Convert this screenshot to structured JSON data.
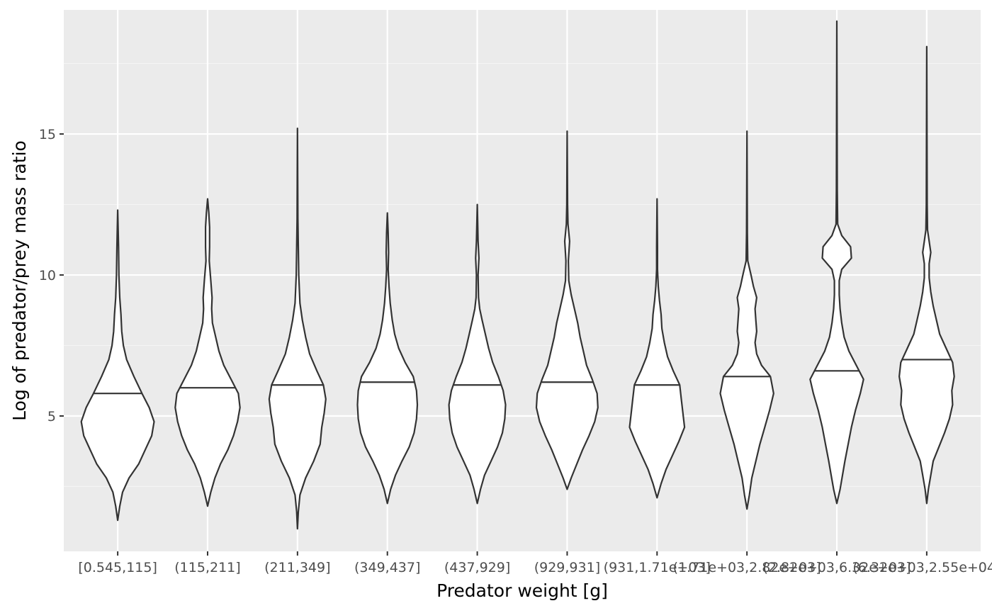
{
  "chart_data": {
    "type": "violin",
    "xlabel": "Predator weight [g]",
    "ylabel": "Log of predator/prey mass ratio",
    "ylim": [
      0.2,
      19.4
    ],
    "yticks": [
      5,
      10,
      15
    ],
    "yticklabels": [
      "5",
      "10",
      "15"
    ],
    "grid": true,
    "colors": {
      "panel_background": "#ebebeb",
      "grid_major": "#ffffff",
      "grid_minor": "#f5f5f5",
      "violin_fill": "#ffffff",
      "violin_outline": "#333333",
      "tick_text": "#4d4d4d",
      "title_text": "#000000"
    },
    "categories": [
      "[0.545,115]",
      "(115,211]",
      "(211,349]",
      "(349,437]",
      "(437,929]",
      "(929,931]",
      "(931,1.71e+03]",
      "(1.71e+03,2.82e+03]",
      "(2.82e+03,6.32e+03]",
      "(6.32e+03,2.55e+04]"
    ],
    "violins": [
      {
        "category": "[0.545,115]",
        "min": 1.3,
        "max": 12.3,
        "median": 5.8,
        "profile": [
          [
            1.3,
            0.0
          ],
          [
            1.8,
            0.05
          ],
          [
            2.3,
            0.12
          ],
          [
            2.8,
            0.28
          ],
          [
            3.3,
            0.52
          ],
          [
            3.8,
            0.68
          ],
          [
            4.3,
            0.84
          ],
          [
            4.8,
            0.9
          ],
          [
            5.3,
            0.78
          ],
          [
            5.8,
            0.6
          ],
          [
            6.4,
            0.4
          ],
          [
            7.0,
            0.22
          ],
          [
            7.5,
            0.14
          ],
          [
            8.0,
            0.1
          ],
          [
            8.6,
            0.08
          ],
          [
            9.2,
            0.05
          ],
          [
            10.0,
            0.03
          ],
          [
            11.0,
            0.02
          ],
          [
            12.3,
            0.0
          ]
        ]
      },
      {
        "category": "(115,211]",
        "min": 1.8,
        "max": 12.7,
        "median": 6.0,
        "profile": [
          [
            1.8,
            0.0
          ],
          [
            2.3,
            0.08
          ],
          [
            2.8,
            0.18
          ],
          [
            3.3,
            0.32
          ],
          [
            3.8,
            0.5
          ],
          [
            4.3,
            0.64
          ],
          [
            4.8,
            0.74
          ],
          [
            5.3,
            0.8
          ],
          [
            5.8,
            0.76
          ],
          [
            6.3,
            0.58
          ],
          [
            6.8,
            0.4
          ],
          [
            7.3,
            0.28
          ],
          [
            7.8,
            0.2
          ],
          [
            8.3,
            0.12
          ],
          [
            8.8,
            0.1
          ],
          [
            9.2,
            0.11
          ],
          [
            9.8,
            0.08
          ],
          [
            10.5,
            0.04
          ],
          [
            11.0,
            0.05
          ],
          [
            11.7,
            0.05
          ],
          [
            12.2,
            0.03
          ],
          [
            12.7,
            0.0
          ]
        ]
      },
      {
        "category": "(211,349]",
        "min": 1.0,
        "max": 15.2,
        "median": 6.1,
        "profile": [
          [
            1.0,
            0.0
          ],
          [
            1.6,
            0.02
          ],
          [
            2.2,
            0.06
          ],
          [
            2.8,
            0.2
          ],
          [
            3.4,
            0.4
          ],
          [
            4.0,
            0.56
          ],
          [
            4.6,
            0.6
          ],
          [
            5.1,
            0.66
          ],
          [
            5.6,
            0.7
          ],
          [
            6.1,
            0.64
          ],
          [
            6.6,
            0.48
          ],
          [
            7.2,
            0.3
          ],
          [
            7.8,
            0.2
          ],
          [
            8.4,
            0.12
          ],
          [
            9.0,
            0.06
          ],
          [
            10.0,
            0.03
          ],
          [
            11.0,
            0.02
          ],
          [
            12.0,
            0.01
          ],
          [
            15.2,
            0.0
          ]
        ]
      },
      {
        "category": "(349,437]",
        "min": 1.9,
        "max": 12.2,
        "median": 6.2,
        "profile": [
          [
            1.9,
            0.0
          ],
          [
            2.4,
            0.08
          ],
          [
            2.9,
            0.2
          ],
          [
            3.4,
            0.36
          ],
          [
            3.9,
            0.54
          ],
          [
            4.4,
            0.66
          ],
          [
            4.9,
            0.72
          ],
          [
            5.4,
            0.74
          ],
          [
            5.9,
            0.72
          ],
          [
            6.4,
            0.64
          ],
          [
            6.9,
            0.44
          ],
          [
            7.4,
            0.28
          ],
          [
            7.9,
            0.18
          ],
          [
            8.4,
            0.12
          ],
          [
            9.0,
            0.07
          ],
          [
            9.6,
            0.04
          ],
          [
            10.2,
            0.02
          ],
          [
            10.8,
            0.03
          ],
          [
            11.5,
            0.02
          ],
          [
            12.2,
            0.0
          ]
        ]
      },
      {
        "category": "(437,929]",
        "min": 1.9,
        "max": 12.5,
        "median": 6.1,
        "profile": [
          [
            1.9,
            0.0
          ],
          [
            2.4,
            0.08
          ],
          [
            2.9,
            0.18
          ],
          [
            3.4,
            0.34
          ],
          [
            3.9,
            0.5
          ],
          [
            4.4,
            0.62
          ],
          [
            4.9,
            0.68
          ],
          [
            5.4,
            0.7
          ],
          [
            5.9,
            0.64
          ],
          [
            6.4,
            0.52
          ],
          [
            6.9,
            0.38
          ],
          [
            7.4,
            0.28
          ],
          [
            7.9,
            0.2
          ],
          [
            8.4,
            0.12
          ],
          [
            8.8,
            0.06
          ],
          [
            9.2,
            0.03
          ],
          [
            10.0,
            0.02
          ],
          [
            10.6,
            0.04
          ],
          [
            11.2,
            0.02
          ],
          [
            12.5,
            0.0
          ]
        ]
      },
      {
        "category": "(929,931]",
        "min": 2.4,
        "max": 15.1,
        "median": 6.2,
        "profile": [
          [
            2.4,
            0.0
          ],
          [
            2.8,
            0.1
          ],
          [
            3.3,
            0.24
          ],
          [
            3.8,
            0.38
          ],
          [
            4.3,
            0.54
          ],
          [
            4.8,
            0.68
          ],
          [
            5.3,
            0.76
          ],
          [
            5.8,
            0.74
          ],
          [
            6.3,
            0.62
          ],
          [
            6.8,
            0.48
          ],
          [
            7.3,
            0.4
          ],
          [
            7.8,
            0.32
          ],
          [
            8.3,
            0.26
          ],
          [
            8.8,
            0.18
          ],
          [
            9.3,
            0.1
          ],
          [
            9.8,
            0.04
          ],
          [
            10.5,
            0.03
          ],
          [
            11.2,
            0.06
          ],
          [
            11.8,
            0.02
          ],
          [
            12.5,
            0.01
          ],
          [
            15.1,
            0.0
          ]
        ]
      },
      {
        "category": "(931,1.71e+03]",
        "min": 2.1,
        "max": 12.7,
        "median": 6.1,
        "profile": [
          [
            2.1,
            0.0
          ],
          [
            2.6,
            0.1
          ],
          [
            3.1,
            0.22
          ],
          [
            3.6,
            0.38
          ],
          [
            4.1,
            0.54
          ],
          [
            4.6,
            0.68
          ],
          [
            5.1,
            0.64
          ],
          [
            5.6,
            0.6
          ],
          [
            6.1,
            0.56
          ],
          [
            6.6,
            0.4
          ],
          [
            7.1,
            0.26
          ],
          [
            7.6,
            0.18
          ],
          [
            8.1,
            0.12
          ],
          [
            8.6,
            0.1
          ],
          [
            9.1,
            0.06
          ],
          [
            9.6,
            0.03
          ],
          [
            10.2,
            0.01
          ],
          [
            11.0,
            0.01
          ],
          [
            12.7,
            0.0
          ]
        ]
      },
      {
        "category": "(1.71e+03,2.82e+03]",
        "min": 1.7,
        "max": 15.1,
        "median": 6.4,
        "profile": [
          [
            1.7,
            0.0
          ],
          [
            2.2,
            0.06
          ],
          [
            2.8,
            0.12
          ],
          [
            3.4,
            0.22
          ],
          [
            4.0,
            0.32
          ],
          [
            4.6,
            0.44
          ],
          [
            5.2,
            0.56
          ],
          [
            5.8,
            0.66
          ],
          [
            6.4,
            0.58
          ],
          [
            6.8,
            0.36
          ],
          [
            7.2,
            0.24
          ],
          [
            7.6,
            0.2
          ],
          [
            8.0,
            0.24
          ],
          [
            8.4,
            0.22
          ],
          [
            8.8,
            0.2
          ],
          [
            9.2,
            0.24
          ],
          [
            9.6,
            0.16
          ],
          [
            10.0,
            0.1
          ],
          [
            10.5,
            0.02
          ],
          [
            11.5,
            0.01
          ],
          [
            15.1,
            0.0
          ]
        ]
      },
      {
        "category": "(2.82e+03,6.32e+03]",
        "min": 1.9,
        "max": 19.0,
        "median": 6.6,
        "profile": [
          [
            1.9,
            0.0
          ],
          [
            2.4,
            0.08
          ],
          [
            2.9,
            0.14
          ],
          [
            3.4,
            0.2
          ],
          [
            4.0,
            0.28
          ],
          [
            4.6,
            0.36
          ],
          [
            5.2,
            0.46
          ],
          [
            5.8,
            0.58
          ],
          [
            6.3,
            0.66
          ],
          [
            6.8,
            0.48
          ],
          [
            7.3,
            0.3
          ],
          [
            7.8,
            0.18
          ],
          [
            8.3,
            0.12
          ],
          [
            8.8,
            0.08
          ],
          [
            9.3,
            0.06
          ],
          [
            9.8,
            0.06
          ],
          [
            10.2,
            0.12
          ],
          [
            10.6,
            0.36
          ],
          [
            11.0,
            0.34
          ],
          [
            11.4,
            0.12
          ],
          [
            11.8,
            0.02
          ],
          [
            13.0,
            0.01
          ],
          [
            19.0,
            0.0
          ]
        ]
      },
      {
        "category": "(6.32e+03,2.55e+04]",
        "min": 1.9,
        "max": 18.1,
        "median": 7.0,
        "profile": [
          [
            1.9,
            0.0
          ],
          [
            2.4,
            0.04
          ],
          [
            2.9,
            0.1
          ],
          [
            3.4,
            0.16
          ],
          [
            3.9,
            0.3
          ],
          [
            4.4,
            0.44
          ],
          [
            4.9,
            0.56
          ],
          [
            5.4,
            0.64
          ],
          [
            5.9,
            0.62
          ],
          [
            6.4,
            0.68
          ],
          [
            6.9,
            0.64
          ],
          [
            7.4,
            0.48
          ],
          [
            7.9,
            0.32
          ],
          [
            8.4,
            0.24
          ],
          [
            8.9,
            0.16
          ],
          [
            9.4,
            0.1
          ],
          [
            9.9,
            0.06
          ],
          [
            10.4,
            0.06
          ],
          [
            10.8,
            0.1
          ],
          [
            11.2,
            0.06
          ],
          [
            11.6,
            0.02
          ],
          [
            12.5,
            0.01
          ],
          [
            18.1,
            0.0
          ]
        ]
      }
    ]
  }
}
